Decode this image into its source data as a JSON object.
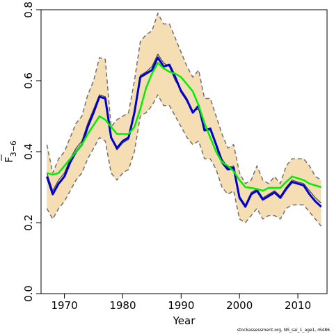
{
  "chart_data": {
    "type": "line",
    "xlabel": "Year",
    "ylabel_main": "F",
    "ylabel_sub": "3−6",
    "xlim": [
      1966,
      2015
    ],
    "ylim": [
      0,
      0.8
    ],
    "x_ticks": [
      1970,
      1980,
      1990,
      2000,
      2010
    ],
    "y_ticks": [
      0.0,
      0.2,
      0.4,
      0.6,
      0.8
    ],
    "y_tick_labels": [
      "0.0",
      "0.2",
      "0.4",
      "0.6",
      "0.8"
    ],
    "colors": {
      "band_fill": "#f5deb3",
      "band_edge": "#707070",
      "estimate": "#0000cc",
      "smooth": "#00ee00",
      "alt_run": "#444444"
    },
    "x": [
      1967,
      1968,
      1969,
      1970,
      1971,
      1972,
      1973,
      1974,
      1975,
      1976,
      1977,
      1978,
      1979,
      1980,
      1981,
      1982,
      1983,
      1984,
      1985,
      1986,
      1987,
      1988,
      1989,
      1990,
      1991,
      1992,
      1993,
      1994,
      1995,
      1996,
      1997,
      1998,
      1999,
      2000,
      2001,
      2002,
      2003,
      2004,
      2005,
      2006,
      2007,
      2008,
      2009,
      2010,
      2011,
      2012,
      2013,
      2014
    ],
    "series": [
      {
        "role": "upper",
        "values": [
          0.42,
          0.34,
          0.38,
          0.4,
          0.44,
          0.48,
          0.5,
          0.56,
          0.6,
          0.665,
          0.66,
          0.47,
          0.49,
          0.5,
          0.51,
          0.6,
          0.71,
          0.73,
          0.74,
          0.79,
          0.76,
          0.76,
          0.72,
          0.68,
          0.64,
          0.61,
          0.63,
          0.55,
          0.55,
          0.5,
          0.45,
          0.41,
          0.42,
          0.34,
          0.31,
          0.32,
          0.36,
          0.32,
          0.31,
          0.33,
          0.31,
          0.36,
          0.38,
          0.38,
          0.38,
          0.36,
          0.33,
          0.32
        ]
      },
      {
        "role": "lower",
        "values": [
          0.24,
          0.21,
          0.24,
          0.26,
          0.29,
          0.32,
          0.34,
          0.38,
          0.41,
          0.44,
          0.43,
          0.34,
          0.32,
          0.34,
          0.35,
          0.4,
          0.5,
          0.51,
          0.53,
          0.56,
          0.53,
          0.53,
          0.5,
          0.47,
          0.44,
          0.42,
          0.43,
          0.38,
          0.38,
          0.35,
          0.3,
          0.28,
          0.29,
          0.21,
          0.2,
          0.22,
          0.24,
          0.21,
          0.22,
          0.22,
          0.21,
          0.24,
          0.25,
          0.25,
          0.25,
          0.23,
          0.21,
          0.19
        ]
      },
      {
        "role": "estimate",
        "values": [
          0.33,
          0.28,
          0.31,
          0.33,
          0.37,
          0.4,
          0.42,
          0.47,
          0.51,
          0.555,
          0.55,
          0.44,
          0.41,
          0.43,
          0.44,
          0.51,
          0.61,
          0.62,
          0.63,
          0.665,
          0.64,
          0.645,
          0.61,
          0.57,
          0.545,
          0.51,
          0.53,
          0.46,
          0.465,
          0.42,
          0.37,
          0.35,
          0.355,
          0.27,
          0.245,
          0.28,
          0.29,
          0.265,
          0.275,
          0.285,
          0.27,
          0.295,
          0.315,
          0.31,
          0.305,
          0.28,
          0.26,
          0.245
        ]
      },
      {
        "role": "alt_run",
        "values": [
          0.34,
          0.29,
          0.32,
          0.34,
          0.38,
          0.41,
          0.43,
          0.48,
          0.52,
          0.56,
          0.555,
          0.44,
          0.405,
          0.425,
          0.435,
          0.52,
          0.615,
          0.625,
          0.64,
          0.675,
          0.65,
          0.64,
          0.6,
          0.575,
          0.55,
          0.515,
          0.52,
          0.465,
          0.46,
          0.425,
          0.38,
          0.355,
          0.36,
          0.275,
          0.25,
          0.285,
          0.295,
          0.27,
          0.28,
          0.29,
          0.275,
          0.3,
          0.32,
          0.315,
          0.31,
          0.29,
          0.27,
          0.255
        ]
      },
      {
        "role": "smooth",
        "values": [
          0.34,
          0.335,
          0.34,
          0.36,
          0.38,
          0.4,
          0.42,
          0.45,
          0.475,
          0.5,
          0.49,
          0.47,
          0.45,
          0.45,
          0.45,
          0.47,
          0.52,
          0.58,
          0.62,
          0.65,
          0.635,
          0.625,
          0.62,
          0.61,
          0.59,
          0.57,
          0.53,
          0.48,
          0.44,
          0.4,
          0.37,
          0.36,
          0.345,
          0.32,
          0.3,
          0.298,
          0.295,
          0.29,
          0.298,
          0.298,
          0.298,
          0.315,
          0.33,
          0.325,
          0.32,
          0.31,
          0.305,
          0.3
        ]
      }
    ]
  },
  "footer": "stockassessment.org, NS_sai_1_age1, r6486"
}
